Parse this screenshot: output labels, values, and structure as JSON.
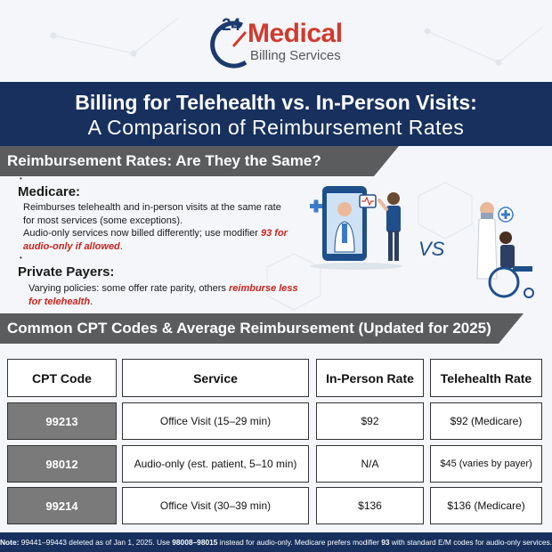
{
  "logo": {
    "number": "24",
    "word": "Medical",
    "subtitle": "Billing Services"
  },
  "title": {
    "line1": "Billing for Telehealth vs. In-Person Visits:",
    "line2": "A Comparison of Reimbursement Rates"
  },
  "section1": {
    "heading": "Reimbursement Rates: Are They the Same?",
    "medicare": {
      "heading": "Medicare:",
      "line1": "Reimburses telehealth and in-person visits at the same rate",
      "line2": "for most services (some exceptions).",
      "line3_pre": "Audio-only services now billed differently; use modifier ",
      "line3_em": "93 for audio-only if allowed",
      "line3_post": "."
    },
    "private": {
      "heading": "Private Payers:",
      "text_pre": "Varying policies: some offer rate parity, others ",
      "text_em": "reimburse less for telehealth",
      "text_post": "."
    },
    "vs_label": "VS"
  },
  "section2": {
    "heading": "Common CPT Codes & Average Reimbursement (Updated for 2025)"
  },
  "table": {
    "headers": [
      "CPT Code",
      "Service",
      "In-Person Rate",
      "Telehealth Rate"
    ],
    "rows": [
      {
        "code": "99213",
        "service": "Office Visit (15–29 min)",
        "in_person": "$92",
        "telehealth": "$92 (Medicare)"
      },
      {
        "code": "98012",
        "service": "Audio-only (est. patient, 5–10 min)",
        "in_person": "N/A",
        "telehealth": "$45 (varies by payer)"
      },
      {
        "code": "99214",
        "service": "Office Visit (30–39 min)",
        "in_person": "$136",
        "telehealth": "$136 (Medicare)"
      }
    ]
  },
  "note": {
    "label": "Note:",
    "part1": " 99441–99443 deleted as of Jan 1, 2025. Use ",
    "codes": "98008–98015",
    "part2": " instead for audio-only. Medicare prefers modifier ",
    "modifier": "93",
    "part3": " with standard E/M codes for audio-only services."
  },
  "colors": {
    "navy": "#17305e",
    "red": "#d13a2e",
    "grey_bar": "#5b5c5e",
    "code_cell": "#7a7a7a"
  }
}
